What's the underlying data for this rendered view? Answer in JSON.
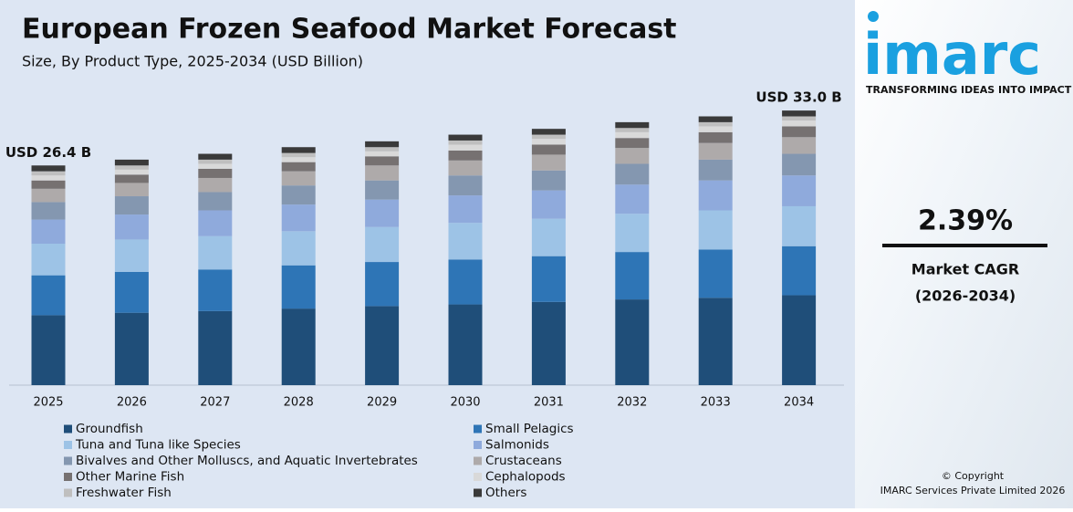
{
  "chart_data": {
    "type": "stacked-bar",
    "title": "European Frozen Seafood Market Forecast",
    "subtitle": "Size, By Product Type, 2025-2034 (USD Billion)",
    "categories": [
      "2025",
      "2026",
      "2027",
      "2028",
      "2029",
      "2030",
      "2031",
      "2032",
      "2033",
      "2034"
    ],
    "ylim": [
      0,
      34
    ],
    "series": [
      {
        "name": "Groundfish",
        "color": "#1f4e79",
        "values": [
          8.4,
          8.7,
          8.9,
          9.2,
          9.5,
          9.7,
          10.0,
          10.3,
          10.5,
          10.8
        ]
      },
      {
        "name": "Small Pelagics",
        "color": "#2e75b6",
        "values": [
          4.8,
          4.9,
          5.0,
          5.2,
          5.3,
          5.4,
          5.5,
          5.7,
          5.8,
          5.9
        ]
      },
      {
        "name": "Tuna and Tuna like Species",
        "color": "#9dc3e6",
        "values": [
          3.8,
          3.9,
          4.0,
          4.1,
          4.2,
          4.4,
          4.5,
          4.6,
          4.7,
          4.8
        ]
      },
      {
        "name": "Salmonids",
        "color": "#8faadc",
        "values": [
          2.9,
          3.0,
          3.1,
          3.2,
          3.3,
          3.3,
          3.4,
          3.5,
          3.6,
          3.7
        ]
      },
      {
        "name": "Bivalves and Other Molluscs, and Aquatic Invertebrates",
        "color": "#8497b0",
        "values": [
          2.1,
          2.2,
          2.2,
          2.3,
          2.3,
          2.4,
          2.4,
          2.5,
          2.5,
          2.6
        ]
      },
      {
        "name": "Crustaceans",
        "color": "#aeaaaa",
        "values": [
          1.6,
          1.6,
          1.7,
          1.7,
          1.8,
          1.8,
          1.9,
          1.9,
          2.0,
          2.0
        ]
      },
      {
        "name": "Other Marine Fish",
        "color": "#767171",
        "values": [
          1.0,
          1.0,
          1.1,
          1.1,
          1.1,
          1.2,
          1.2,
          1.2,
          1.3,
          1.3
        ]
      },
      {
        "name": "Cephalopods",
        "color": "#d9d9d9",
        "values": [
          0.6,
          0.6,
          0.6,
          0.6,
          0.6,
          0.7,
          0.7,
          0.7,
          0.7,
          0.7
        ]
      },
      {
        "name": "Freshwater Fish",
        "color": "#bfbfbf",
        "values": [
          0.5,
          0.5,
          0.5,
          0.5,
          0.5,
          0.5,
          0.5,
          0.5,
          0.5,
          0.5
        ]
      },
      {
        "name": "Others",
        "color": "#3a3a3a",
        "values": [
          0.7,
          0.7,
          0.7,
          0.7,
          0.7,
          0.7,
          0.7,
          0.7,
          0.7,
          0.7
        ]
      }
    ],
    "annotations": [
      {
        "x": "2025",
        "text": "USD 26.4 B"
      },
      {
        "x": "2034",
        "text": "USD 33.0 B"
      }
    ]
  },
  "sidebar": {
    "logo": "imarc",
    "tagline": "TRANSFORMING IDEAS INTO IMPACT",
    "cagr": "2.39%",
    "cagr_label": "Market CAGR",
    "cagr_period": "(2026-2034)",
    "copyright": "© Copyright",
    "company": "IMARC Services Private Limited 2026"
  }
}
